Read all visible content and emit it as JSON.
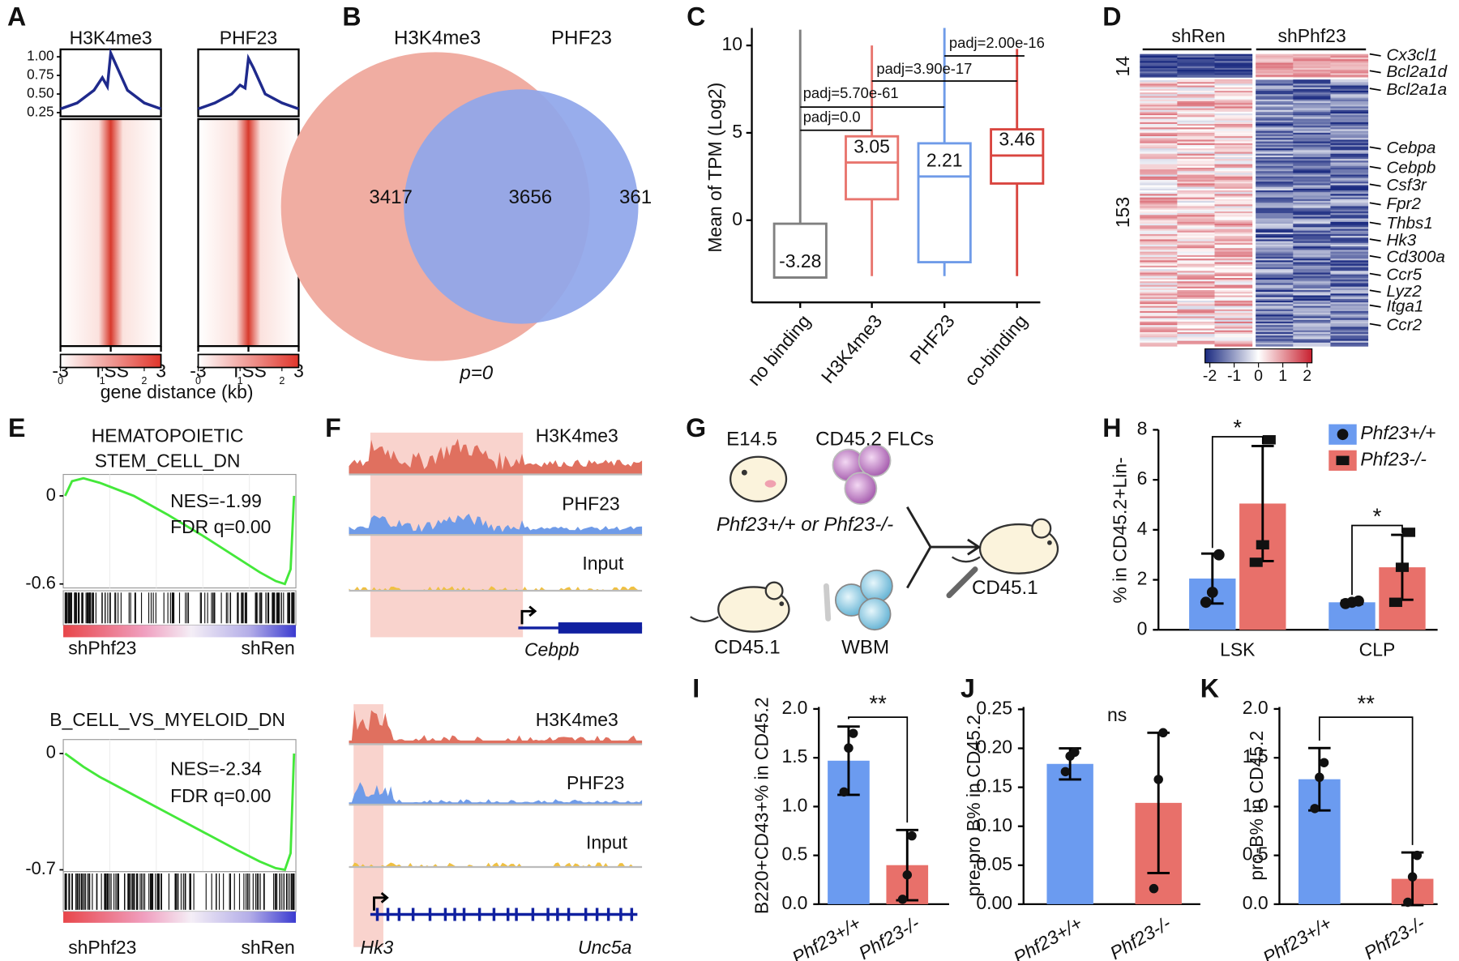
{
  "chart_data": [
    {
      "panel": "A",
      "type": "profile_heatmap",
      "xlabel": "gene distance (kb)",
      "xlim": [
        -3,
        3
      ],
      "xticks": [
        -3,
        {
          "value": 0,
          "label": "TSS"
        },
        3
      ],
      "ylim": [
        0.2,
        1.1
      ],
      "yticks": [
        0.25,
        {
          "value": 0.5,
          "label": "0.50"
        },
        0.75,
        {
          "value": 1,
          "label": "1.00"
        }
      ],
      "x": [
        -3,
        -2,
        -1,
        -0.5,
        -0.2,
        0,
        0.3,
        1,
        2,
        3
      ],
      "series": [
        {
          "name": "H3K4me3",
          "color": "#1f2a8c",
          "values": [
            0.3,
            0.38,
            0.55,
            0.72,
            0.6,
            1.05,
            0.9,
            0.55,
            0.38,
            0.3
          ]
        },
        {
          "name": "PHF23",
          "color": "#1f2a8c",
          "values": [
            0.3,
            0.38,
            0.5,
            0.62,
            0.58,
            0.98,
            0.85,
            0.5,
            0.38,
            0.3
          ]
        }
      ],
      "colorbar": {
        "lim": [
          0,
          2.4
        ],
        "ticks": [
          0,
          1,
          2
        ]
      }
    },
    {
      "panel": "B",
      "type": "venn",
      "sets": [
        {
          "name": "H3K4me3",
          "color": "#f0ada2"
        },
        {
          "name": "PHF23",
          "color": "#8fa6ea"
        }
      ],
      "values": [
        3417,
        3656,
        361
      ],
      "note": "p=0"
    },
    {
      "panel": "C",
      "type": "box",
      "ylabel": "Mean of TPM (Log2)",
      "categories": [
        "no binding",
        "H3K4me3",
        "PHF23",
        "co-binding"
      ],
      "colors": [
        "#808080",
        "#e8756e",
        "#6f9be8",
        "#d9453f"
      ],
      "ylim": [
        -4.7,
        11
      ],
      "yticks": [
        0,
        5,
        10
      ],
      "boxes": [
        {
          "low": -3.28,
          "q1": -3.28,
          "median": -3.28,
          "q3": -0.2,
          "high": 10.9
        },
        {
          "low": -3.2,
          "q1": 1.2,
          "median": 3.3,
          "q3": 4.8,
          "high": 10
        },
        {
          "low": -3.2,
          "q1": -2.4,
          "median": 2.5,
          "q3": 4.4,
          "high": 11
        },
        {
          "low": -3.2,
          "q1": 2.1,
          "median": 3.7,
          "q3": 5.2,
          "high": 9.8
        }
      ],
      "means": [
        -3.28,
        3.05,
        2.21,
        3.46
      ],
      "annotations": [
        "padj=0.0",
        "padj=5.70e-61",
        "padj=3.90e-17",
        "padj=2.00e-16"
      ]
    },
    {
      "panel": "D",
      "type": "heatmap",
      "groups": [
        "shRen",
        "shPhf23"
      ],
      "row_groups": [
        14,
        153
      ],
      "genes": [
        "Cx3cl1",
        "Bcl2a1d",
        "Bcl2a1a",
        "Cebpa",
        "Cebpb",
        "Csf3r",
        "Fpr2",
        "Thbs1",
        "Hk3",
        "Cd300a",
        "Ccr5",
        "Lyz2",
        "Itga1",
        "Ccr2"
      ],
      "clim": [
        -2.2,
        2.2
      ],
      "cticks": [
        -2,
        -1,
        0,
        1,
        2
      ]
    },
    {
      "panel": "E",
      "type": "gsea",
      "plots": [
        {
          "title": [
            "HEMATOPOIETIC",
            "STEM_CELL_DN"
          ],
          "nes": "NES=-1.99",
          "fdr": "FDR q=0.00",
          "ylim": [
            -0.627,
            0.146
          ],
          "yticks": [
            0,
            -0.6
          ],
          "left": "shPhf23",
          "right": "shRen",
          "x": [
            0,
            0.03,
            0.08,
            0.15,
            0.3,
            0.45,
            0.6,
            0.75,
            0.85,
            0.92,
            0.96,
            0.985,
            1
          ],
          "values": [
            0,
            0.1,
            0.12,
            0.09,
            0,
            -0.13,
            -0.27,
            -0.42,
            -0.52,
            -0.58,
            -0.6,
            -0.5,
            0
          ]
        },
        {
          "title": [
            "B_CELL_VS_MYELOID_DN"
          ],
          "nes": "NES=-2.34",
          "fdr": "FDR q=0.00",
          "ylim": [
            -0.711,
            0.084
          ],
          "yticks": [
            0,
            -0.7
          ],
          "left": "shPhf23",
          "right": "shRen",
          "x": [
            0,
            0.03,
            0.08,
            0.15,
            0.3,
            0.45,
            0.6,
            0.75,
            0.85,
            0.92,
            0.96,
            0.985,
            1
          ],
          "values": [
            0,
            -0.03,
            -0.08,
            -0.14,
            -0.25,
            -0.36,
            -0.47,
            -0.58,
            -0.65,
            -0.69,
            -0.7,
            -0.6,
            0
          ]
        }
      ]
    },
    {
      "panel": "F",
      "type": "tracks",
      "loci": [
        {
          "tracks": [
            "H3K4me3",
            "PHF23",
            "Input"
          ],
          "genes": [
            "Cebpb"
          ]
        },
        {
          "tracks": [
            "H3K4me3",
            "PHF23",
            "Input"
          ],
          "genes": [
            "Hk3",
            "Unc5a"
          ]
        }
      ]
    },
    {
      "panel": "G",
      "type": "diagram",
      "labels": [
        "E14.5",
        "CD45.2 FLCs",
        "Phf23+/+ or Phf23-/-",
        "CD45.1",
        "WBM",
        "CD45.1"
      ]
    },
    {
      "panel": "H",
      "type": "grouped_bar",
      "ylabel": "% in CD45.2+Lin-",
      "categories": [
        "LSK",
        "CLP"
      ],
      "ylim": [
        0,
        8
      ],
      "yticks": [
        0,
        2,
        4,
        6,
        8
      ],
      "legend": "upper right",
      "series": [
        {
          "name": "Phf23+/+",
          "color": "#6b9bf0",
          "values": [
            2.05,
            1.1
          ],
          "errors": [
            1.0,
            0.07
          ],
          "points": [
            [
              1.1,
              1.5,
              3.0
            ],
            [
              1.05,
              1.1,
              1.15
            ]
          ]
        },
        {
          "name": "Phf23-/-",
          "color": "#e8706a",
          "values": [
            5.05,
            2.5
          ],
          "errors": [
            2.3,
            1.3
          ],
          "points": [
            [
              2.7,
              3.4,
              7.6
            ],
            [
              1.1,
              2.5,
              3.9
            ]
          ]
        }
      ],
      "annotations": [
        "*",
        "*"
      ]
    },
    {
      "panel": "I",
      "type": "bar",
      "ylabel": "B220+CD43+% in CD45.2",
      "categories": [
        "Phf23+/+",
        "Phf23-/-"
      ],
      "colors": [
        "#6b9bf0",
        "#e8706a"
      ],
      "values": [
        1.47,
        0.4
      ],
      "errors": [
        0.35,
        0.36
      ],
      "points": [
        [
          1.15,
          1.6,
          1.75
        ],
        [
          0.05,
          0.3,
          0.7
        ]
      ],
      "ylim": [
        0,
        2.02
      ],
      "yticks": [
        {
          "value": 0,
          "label": "0.0"
        },
        0.5,
        {
          "value": 1,
          "label": "1.0"
        },
        1.5,
        {
          "value": 2,
          "label": "2.0"
        }
      ],
      "annotation": "**"
    },
    {
      "panel": "J",
      "type": "bar",
      "ylabel": "pre-pro B% in CD45.2",
      "categories": [
        "Phf23+/+",
        "Phf23-/-"
      ],
      "colors": [
        "#6b9bf0",
        "#e8706a"
      ],
      "values": [
        0.18,
        0.13
      ],
      "errors": [
        0.02,
        0.09
      ],
      "points": [
        [
          0.17,
          0.19,
          0.195
        ],
        [
          0.02,
          0.16,
          0.22
        ]
      ],
      "ylim": [
        0,
        0.253
      ],
      "yticks": [
        {
          "value": 0,
          "label": "0.00"
        },
        0.05,
        {
          "value": 0.1,
          "label": "0.10"
        },
        0.15,
        {
          "value": 0.2,
          "label": "0.20"
        },
        0.25
      ],
      "annotation": "ns"
    },
    {
      "panel": "K",
      "type": "bar",
      "ylabel": "pro-B% in CD45.2",
      "categories": [
        "Phf23+/+",
        "Phf23-/-"
      ],
      "colors": [
        "#6b9bf0",
        "#e8706a"
      ],
      "values": [
        1.28,
        0.26
      ],
      "errors": [
        0.32,
        0.27
      ],
      "points": [
        [
          0.98,
          1.3,
          1.45
        ],
        [
          0.02,
          0.28,
          0.5
        ]
      ],
      "ylim": [
        0,
        2.02
      ],
      "yticks": [
        {
          "value": 0,
          "label": "0.0"
        },
        0.5,
        {
          "value": 1,
          "label": "1.0"
        },
        1.5,
        {
          "value": 2,
          "label": "2.0"
        }
      ],
      "annotation": "**"
    }
  ]
}
